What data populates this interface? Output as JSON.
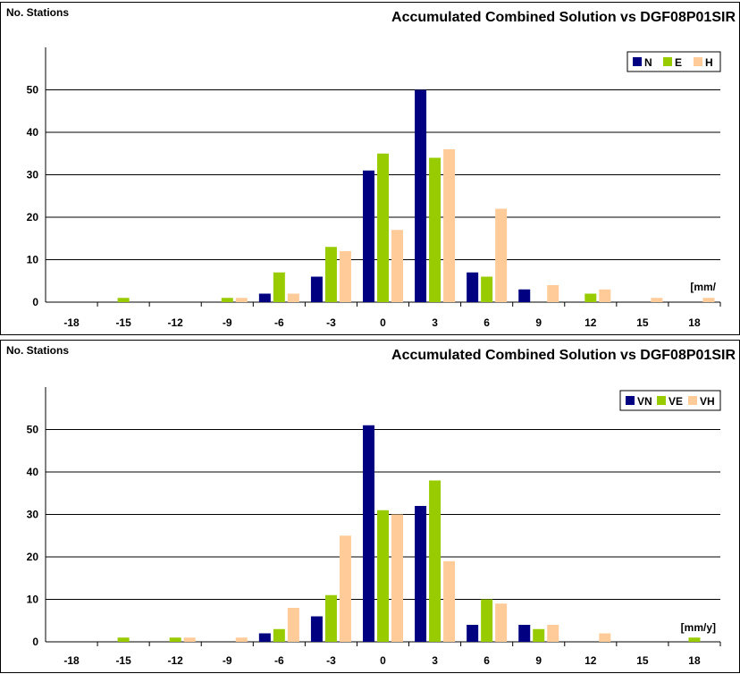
{
  "chart_data": [
    {
      "type": "bar",
      "title": "Accumulated Combined Solution vs DGF08P01SIR",
      "ylabel": "No. Stations",
      "unit_label": "[mm/",
      "categories": [
        "-18",
        "-15",
        "-12",
        "-9",
        "-6",
        "-3",
        "0",
        "3",
        "6",
        "9",
        "12",
        "15",
        "18"
      ],
      "yticks": [
        "0",
        "10",
        "20",
        "30",
        "40",
        "50"
      ],
      "ylim": [
        0,
        60
      ],
      "grid": true,
      "legend_position": "top-right",
      "series": [
        {
          "name": "N",
          "color": "#000080",
          "values": [
            0,
            0,
            0,
            0,
            2,
            6,
            31,
            50,
            7,
            3,
            0,
            0,
            0
          ]
        },
        {
          "name": "E",
          "color": "#99CC00",
          "values": [
            0,
            1,
            0,
            1,
            7,
            13,
            35,
            34,
            6,
            0,
            2,
            0,
            0
          ]
        },
        {
          "name": "H",
          "color": "#FFCC99",
          "values": [
            0,
            0,
            0,
            1,
            2,
            12,
            17,
            36,
            22,
            4,
            3,
            1,
            1
          ]
        }
      ]
    },
    {
      "type": "bar",
      "title": "Accumulated Combined Solution vs DGF08P01SIR",
      "ylabel": "No. Stations",
      "unit_label": "[mm/y]",
      "categories": [
        "-18",
        "-15",
        "-12",
        "-9",
        "-6",
        "-3",
        "0",
        "3",
        "6",
        "9",
        "12",
        "15",
        "18"
      ],
      "yticks": [
        "0",
        "10",
        "20",
        "30",
        "40",
        "50"
      ],
      "ylim": [
        0,
        60
      ],
      "grid": true,
      "legend_position": "top-right",
      "series": [
        {
          "name": "VN",
          "color": "#000080",
          "values": [
            0,
            0,
            0,
            0,
            2,
            6,
            51,
            32,
            4,
            4,
            0,
            0,
            0
          ]
        },
        {
          "name": "VE",
          "color": "#99CC00",
          "values": [
            0,
            1,
            1,
            0,
            3,
            11,
            31,
            38,
            10,
            3,
            0,
            0,
            1
          ]
        },
        {
          "name": "VH",
          "color": "#FFCC99",
          "values": [
            0,
            0,
            1,
            1,
            8,
            25,
            30,
            19,
            9,
            4,
            2,
            0,
            0
          ]
        }
      ]
    }
  ]
}
